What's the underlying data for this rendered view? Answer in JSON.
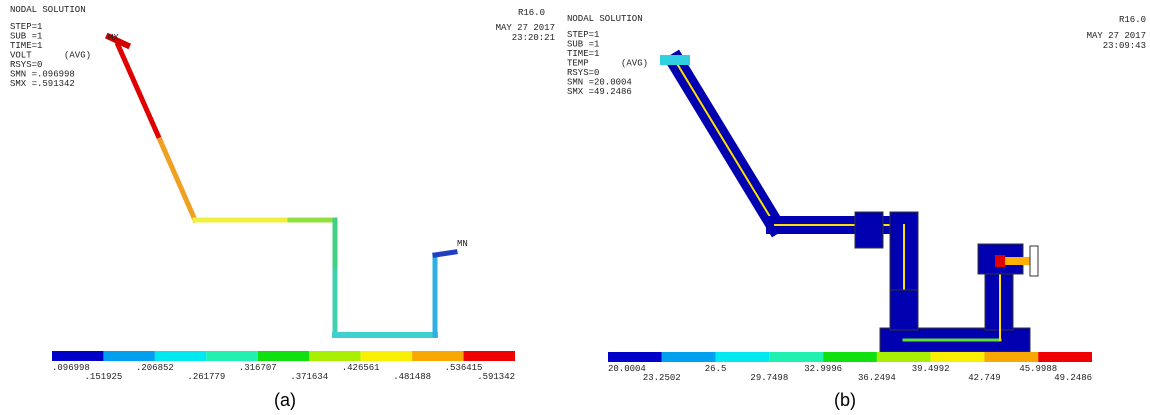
{
  "panels": [
    {
      "title": "NODAL SOLUTION",
      "info": [
        "STEP=1",
        "SUB =1",
        "TIME=1",
        "VOLT      (AVG)",
        "RSYS=0",
        "SMN =.096998",
        "SMX =.591342"
      ],
      "date": "MAY 27 2017",
      "time": "23:20:21",
      "version": "R16.0",
      "max_label": "MX",
      "min_label": "MN",
      "legend": [
        ".096998",
        ".151925",
        ".206852",
        ".261779",
        ".316707",
        ".371634",
        ".426561",
        ".481488",
        ".536415",
        ".591342"
      ],
      "caption": "(a)"
    },
    {
      "title": "NODAL SOLUTION",
      "info": [
        "STEP=1",
        "SUB =1",
        "TIME=1",
        "TEMP      (AVG)",
        "RSYS=0",
        "SMN =20.0004",
        "SMX =49.2486"
      ],
      "date": "MAY 27 2017",
      "time": "23:09:43",
      "version": "R16.0",
      "legend": [
        "20.0004",
        "23.2502",
        "26.5",
        "29.7498",
        "32.9996",
        "36.2494",
        "39.4992",
        "42.749",
        "45.9988",
        "49.2486"
      ],
      "caption": "(b)"
    }
  ]
}
